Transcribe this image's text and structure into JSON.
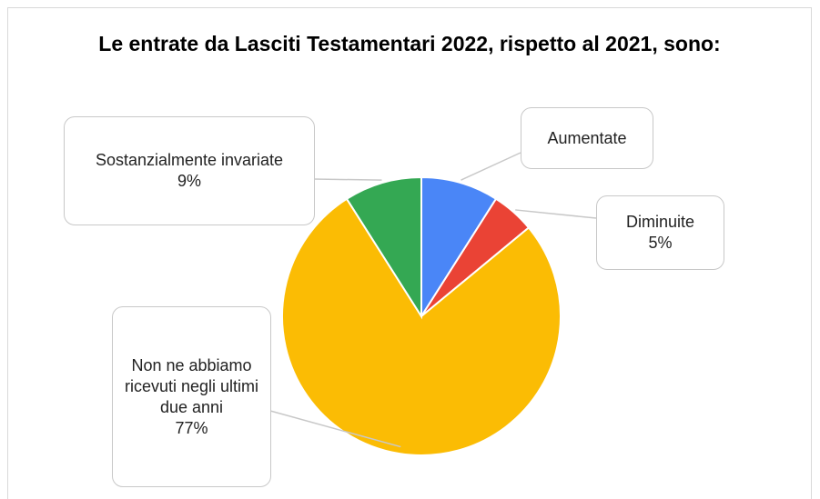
{
  "chart_data": {
    "type": "pie",
    "title": "Le entrate da Lasciti Testamentari 2022, rispetto al 2021, sono:",
    "categories": [
      "Aumentate",
      "Diminuite",
      "Non ne abbiamo ricevuti negli ultimi due anni",
      "Sostanzialmente invariate"
    ],
    "values": [
      9,
      5,
      77,
      9
    ],
    "value_labels": [
      null,
      "5%",
      "77%",
      "9%"
    ],
    "colors": [
      "#4a86f7",
      "#ea4335",
      "#fbbc04",
      "#34a853"
    ]
  }
}
